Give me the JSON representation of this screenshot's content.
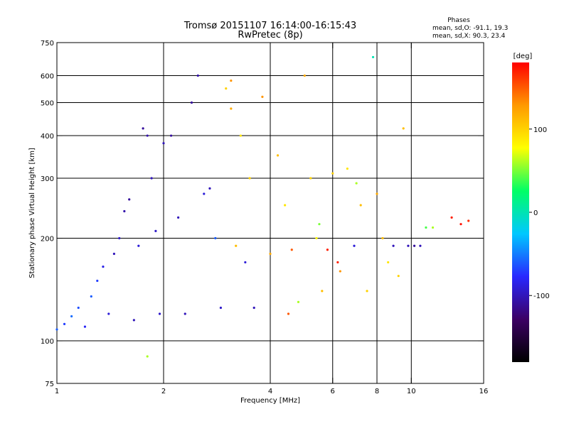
{
  "chart_data": {
    "type": "scatter",
    "title": "Tromsø 20151107 16:14:00-16:15:43",
    "subtitle": "RwPretec (8p)",
    "annotation": {
      "heading": "Phases",
      "line1": "mean, sd,O: -91.1, 19.3",
      "line2": "mean, sd,X:  90.3, 23.4"
    },
    "xlabel": "Frequency [MHz]",
    "ylabel": "Stationary phase Virtual Height [km]",
    "xscale": "log",
    "yscale": "log",
    "xlim": [
      1,
      16
    ],
    "ylim": [
      75,
      750
    ],
    "xticks": [
      1,
      2,
      4,
      6,
      8,
      10,
      16
    ],
    "yticks": [
      75,
      100,
      200,
      300,
      400,
      500,
      600,
      750
    ],
    "xgrid": [
      2,
      4,
      6,
      8,
      10
    ],
    "ygrid": [
      100,
      200,
      300,
      400,
      500,
      600
    ],
    "grid": true,
    "colorbar": {
      "label": "[deg]",
      "range": [
        -180,
        180
      ],
      "ticks": [
        100,
        0,
        -100
      ],
      "colors": [
        "#000000",
        "#3c0064",
        "#2828ff",
        "#00c8ff",
        "#00ff66",
        "#ffff00",
        "#ff9900",
        "#ff0000"
      ]
    },
    "points": [
      {
        "f": 1.0,
        "h": 108,
        "p": -60
      },
      {
        "f": 1.05,
        "h": 112,
        "p": -70
      },
      {
        "f": 1.1,
        "h": 118,
        "p": -55
      },
      {
        "f": 1.15,
        "h": 125,
        "p": -65
      },
      {
        "f": 1.2,
        "h": 110,
        "p": -80
      },
      {
        "f": 1.25,
        "h": 135,
        "p": -60
      },
      {
        "f": 1.3,
        "h": 150,
        "p": -70
      },
      {
        "f": 1.35,
        "h": 165,
        "p": -85
      },
      {
        "f": 1.4,
        "h": 120,
        "p": -90
      },
      {
        "f": 1.45,
        "h": 180,
        "p": -100
      },
      {
        "f": 1.5,
        "h": 200,
        "p": -95
      },
      {
        "f": 1.55,
        "h": 240,
        "p": -105
      },
      {
        "f": 1.6,
        "h": 260,
        "p": -110
      },
      {
        "f": 1.65,
        "h": 115,
        "p": -100
      },
      {
        "f": 1.7,
        "h": 190,
        "p": -90
      },
      {
        "f": 1.75,
        "h": 420,
        "p": -110
      },
      {
        "f": 1.8,
        "h": 400,
        "p": -105
      },
      {
        "f": 1.85,
        "h": 300,
        "p": -100
      },
      {
        "f": 1.9,
        "h": 210,
        "p": -95
      },
      {
        "f": 1.95,
        "h": 120,
        "p": -95
      },
      {
        "f": 2.0,
        "h": 380,
        "p": -100
      },
      {
        "f": 2.1,
        "h": 400,
        "p": -110
      },
      {
        "f": 2.2,
        "h": 230,
        "p": -100
      },
      {
        "f": 2.3,
        "h": 120,
        "p": -100
      },
      {
        "f": 2.4,
        "h": 500,
        "p": -110
      },
      {
        "f": 2.5,
        "h": 600,
        "p": -105
      },
      {
        "f": 2.6,
        "h": 270,
        "p": -90
      },
      {
        "f": 2.7,
        "h": 280,
        "p": -100
      },
      {
        "f": 2.8,
        "h": 200,
        "p": -60
      },
      {
        "f": 2.9,
        "h": 125,
        "p": -95
      },
      {
        "f": 3.0,
        "h": 550,
        "p": 100
      },
      {
        "f": 3.1,
        "h": 480,
        "p": 120
      },
      {
        "f": 3.2,
        "h": 190,
        "p": 110
      },
      {
        "f": 3.3,
        "h": 400,
        "p": 90
      },
      {
        "f": 3.4,
        "h": 170,
        "p": -90
      },
      {
        "f": 3.5,
        "h": 300,
        "p": 100
      },
      {
        "f": 3.6,
        "h": 125,
        "p": -100
      },
      {
        "f": 3.8,
        "h": 520,
        "p": 130
      },
      {
        "f": 4.0,
        "h": 180,
        "p": 120
      },
      {
        "f": 4.2,
        "h": 350,
        "p": 110
      },
      {
        "f": 4.4,
        "h": 250,
        "p": 90
      },
      {
        "f": 4.6,
        "h": 185,
        "p": 150
      },
      {
        "f": 4.8,
        "h": 130,
        "p": 60
      },
      {
        "f": 5.0,
        "h": 600,
        "p": 120
      },
      {
        "f": 5.2,
        "h": 300,
        "p": 100
      },
      {
        "f": 5.4,
        "h": 200,
        "p": 80
      },
      {
        "f": 5.6,
        "h": 140,
        "p": 110
      },
      {
        "f": 5.8,
        "h": 185,
        "p": 170
      },
      {
        "f": 6.0,
        "h": 310,
        "p": 100
      },
      {
        "f": 6.3,
        "h": 160,
        "p": 130
      },
      {
        "f": 6.6,
        "h": 320,
        "p": 90
      },
      {
        "f": 6.9,
        "h": 190,
        "p": -90
      },
      {
        "f": 7.2,
        "h": 250,
        "p": 110
      },
      {
        "f": 7.5,
        "h": 140,
        "p": 100
      },
      {
        "f": 7.8,
        "h": 680,
        "p": 0
      },
      {
        "f": 8.0,
        "h": 270,
        "p": 120
      },
      {
        "f": 8.3,
        "h": 200,
        "p": 110
      },
      {
        "f": 8.6,
        "h": 170,
        "p": 90
      },
      {
        "f": 8.9,
        "h": 190,
        "p": -100
      },
      {
        "f": 9.2,
        "h": 155,
        "p": 100
      },
      {
        "f": 9.5,
        "h": 420,
        "p": 110
      },
      {
        "f": 9.8,
        "h": 190,
        "p": -100
      },
      {
        "f": 10.2,
        "h": 190,
        "p": -110
      },
      {
        "f": 10.6,
        "h": 190,
        "p": -100
      },
      {
        "f": 11.0,
        "h": 215,
        "p": 40
      },
      {
        "f": 11.5,
        "h": 215,
        "p": 60
      },
      {
        "f": 13.0,
        "h": 230,
        "p": 170
      },
      {
        "f": 13.8,
        "h": 220,
        "p": 175
      },
      {
        "f": 14.5,
        "h": 225,
        "p": 165
      },
      {
        "f": 1.8,
        "h": 90,
        "p": 60
      },
      {
        "f": 7.0,
        "h": 290,
        "p": 60
      },
      {
        "f": 3.1,
        "h": 580,
        "p": 130
      },
      {
        "f": 4.5,
        "h": 120,
        "p": 150
      },
      {
        "f": 5.5,
        "h": 220,
        "p": 50
      },
      {
        "f": 6.2,
        "h": 170,
        "p": 170
      }
    ]
  }
}
